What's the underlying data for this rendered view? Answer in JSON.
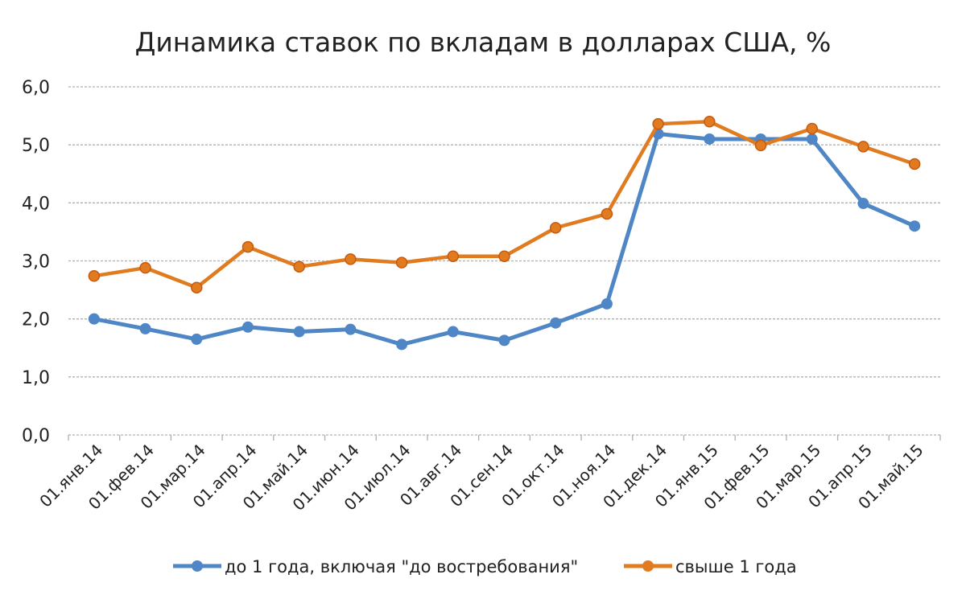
{
  "chart_data": {
    "type": "line",
    "title": "Динамика ставок по вкладам в долларах США, %",
    "xlabel": "",
    "ylabel": "",
    "ylim": [
      0,
      6
    ],
    "yticks": [
      "0,0",
      "1,0",
      "2,0",
      "3,0",
      "4,0",
      "5,0",
      "6,0"
    ],
    "grid": true,
    "legend_position": "bottom",
    "categories": [
      "01.янв.14",
      "01.фев.14",
      "01.мар.14",
      "01.апр.14",
      "01.май.14",
      "01.июн.14",
      "01.июл.14",
      "01.авг.14",
      "01.сен.14",
      "01.окт.14",
      "01.ноя.14",
      "01.дек.14",
      "01.янв.15",
      "01.фев.15",
      "01.мар.15",
      "01.апр.15",
      "01.май.15"
    ],
    "series": [
      {
        "name": "до 1 года, включая \"до востребования\"",
        "color": "#4f86c6",
        "values": [
          2.0,
          1.83,
          1.65,
          1.86,
          1.78,
          1.82,
          1.56,
          1.78,
          1.63,
          1.93,
          2.26,
          5.19,
          5.1,
          5.1,
          5.1,
          3.99,
          3.6
        ]
      },
      {
        "name": "свыше 1 года",
        "color": "#e07b1f",
        "values": [
          2.74,
          2.88,
          2.54,
          3.24,
          2.9,
          3.03,
          2.97,
          3.08,
          3.08,
          3.57,
          3.81,
          5.36,
          5.4,
          4.99,
          5.28,
          4.97,
          4.67
        ]
      }
    ]
  }
}
